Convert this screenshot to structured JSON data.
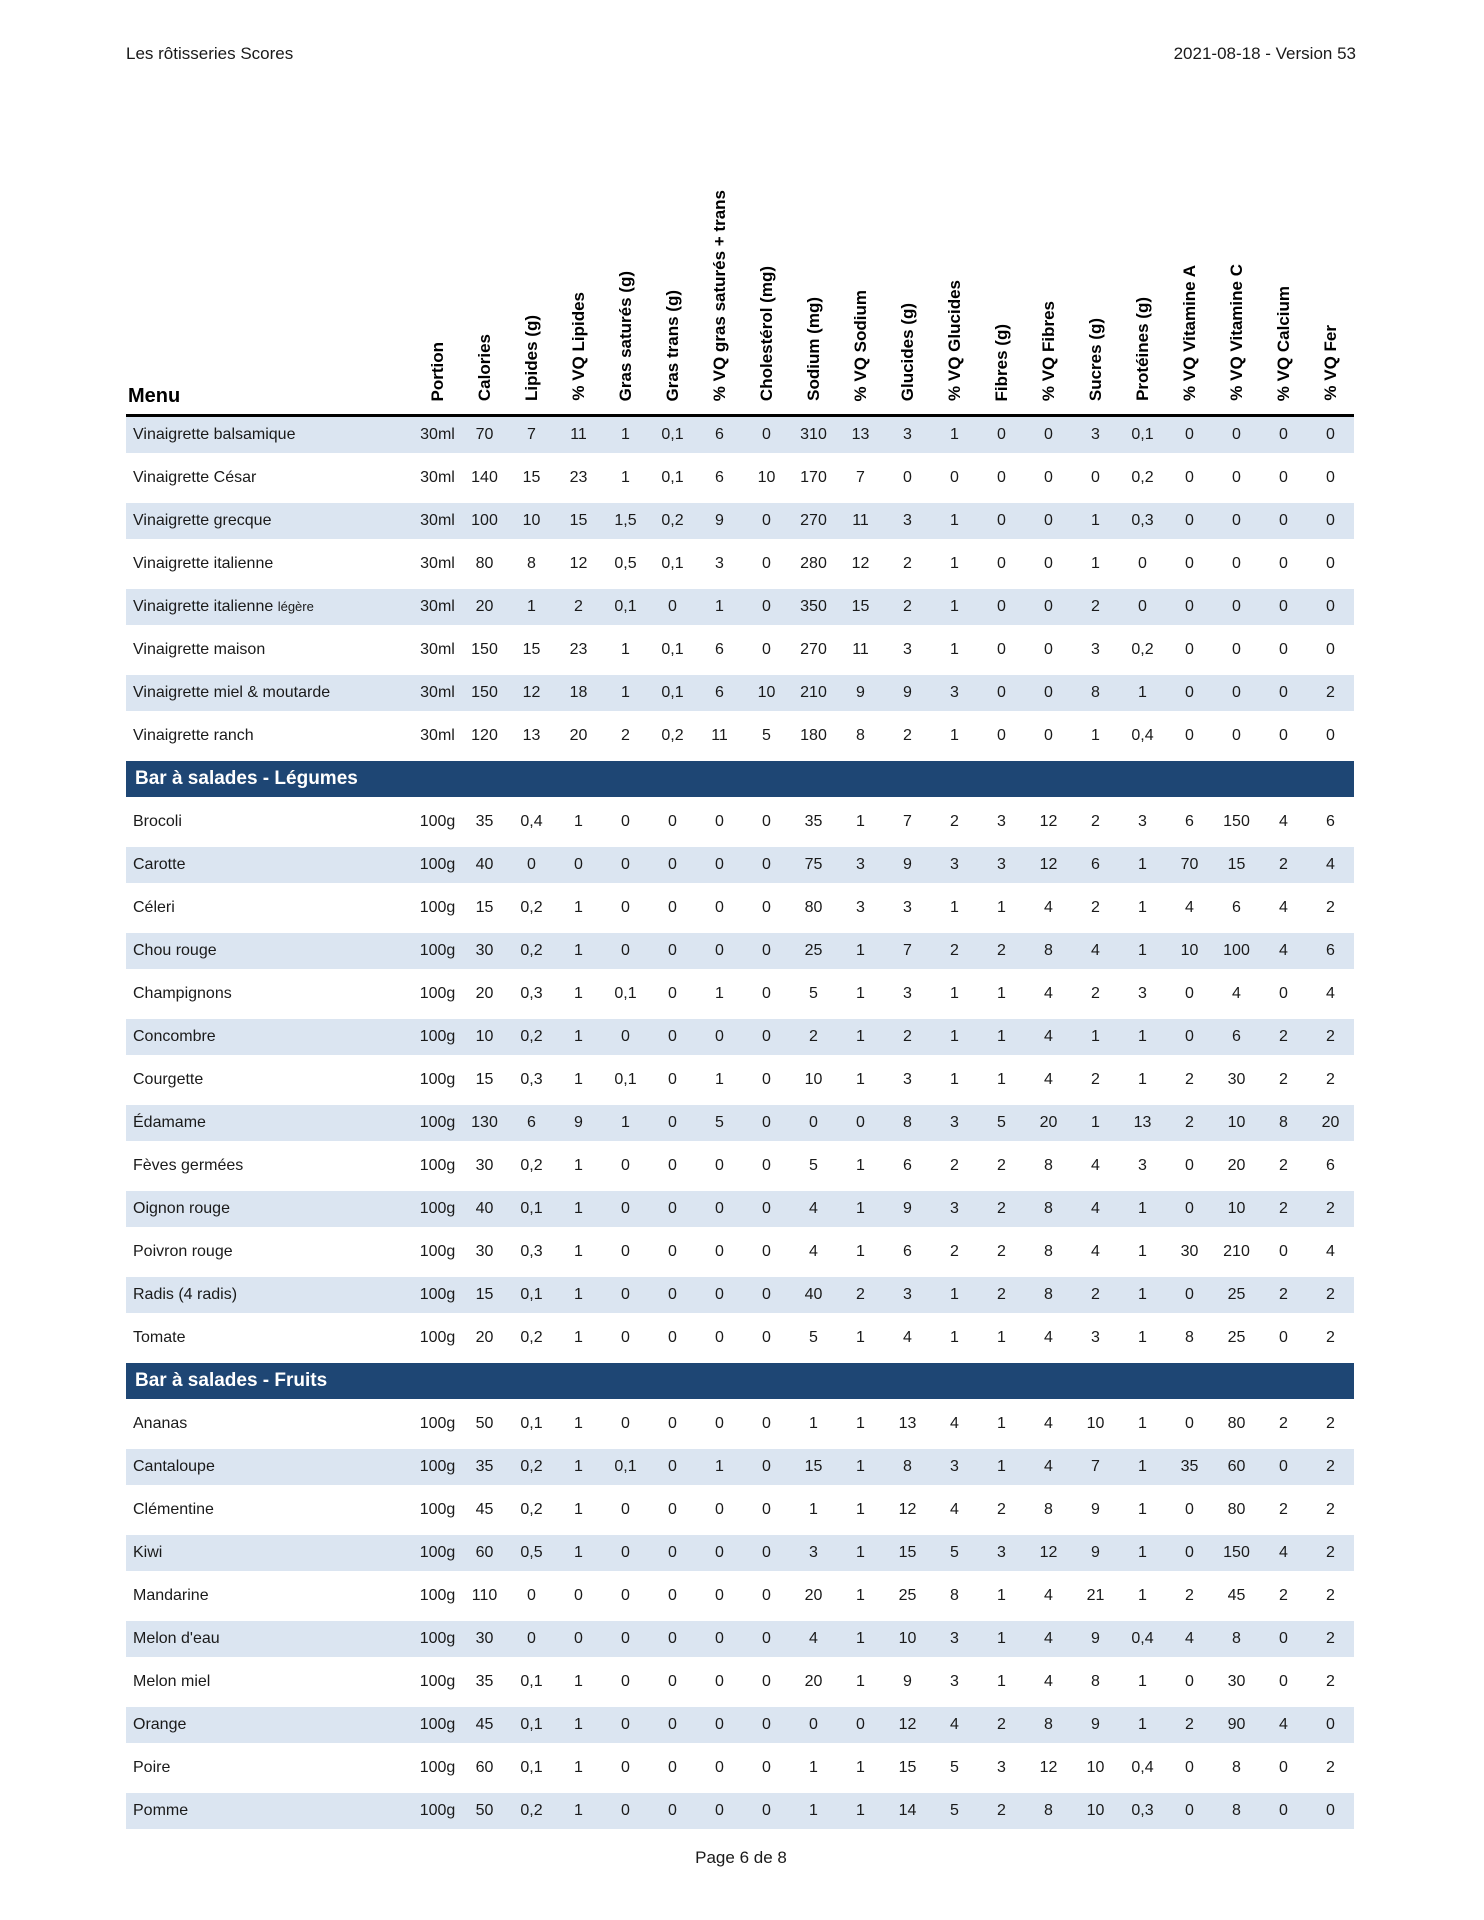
{
  "page_header": {
    "title": "Les rôtisseries Scores",
    "version": "2021-08-18 - Version 53"
  },
  "page_footer": {
    "text": "Page 6 de 8"
  },
  "table": {
    "menu_header": "Menu",
    "colors": {
      "shaded_row": "#dbe5f1",
      "section_bar": "#1e4674",
      "header_rule": "#000000"
    },
    "columns": [
      "Portion",
      "Calories",
      "Lipides (g)",
      "% VQ Lipides",
      "Gras saturés (g)",
      "Gras trans (g)",
      "% VQ gras saturés + trans",
      "Cholestérol (mg)",
      "Sodium (mg)",
      "% VQ Sodium",
      "Glucides (g)",
      "% VQ Glucides",
      "Fibres (g)",
      "% VQ Fibres",
      "Sucres (g)",
      "Protéines (g)",
      "% VQ Vitamine A",
      "% VQ Vitamine C",
      "% VQ Calcium",
      "% VQ Fer"
    ],
    "sections": [
      {
        "title": "",
        "rows": [
          {
            "name": "Vinaigrette balsamique",
            "suffix": "",
            "values": [
              "30ml",
              "70",
              "7",
              "11",
              "1",
              "0,1",
              "6",
              "0",
              "310",
              "13",
              "3",
              "1",
              "0",
              "0",
              "3",
              "0,1",
              "0",
              "0",
              "0",
              "0"
            ]
          },
          {
            "name": "Vinaigrette César",
            "suffix": "",
            "values": [
              "30ml",
              "140",
              "15",
              "23",
              "1",
              "0,1",
              "6",
              "10",
              "170",
              "7",
              "0",
              "0",
              "0",
              "0",
              "0",
              "0,2",
              "0",
              "0",
              "0",
              "0"
            ]
          },
          {
            "name": "Vinaigrette grecque",
            "suffix": "",
            "values": [
              "30ml",
              "100",
              "10",
              "15",
              "1,5",
              "0,2",
              "9",
              "0",
              "270",
              "11",
              "3",
              "1",
              "0",
              "0",
              "1",
              "0,3",
              "0",
              "0",
              "0",
              "0"
            ]
          },
          {
            "name": "Vinaigrette italienne",
            "suffix": "",
            "values": [
              "30ml",
              "80",
              "8",
              "12",
              "0,5",
              "0,1",
              "3",
              "0",
              "280",
              "12",
              "2",
              "1",
              "0",
              "0",
              "1",
              "0",
              "0",
              "0",
              "0",
              "0"
            ]
          },
          {
            "name": "Vinaigrette italienne",
            "suffix": "légère",
            "values": [
              "30ml",
              "20",
              "1",
              "2",
              "0,1",
              "0",
              "1",
              "0",
              "350",
              "15",
              "2",
              "1",
              "0",
              "0",
              "2",
              "0",
              "0",
              "0",
              "0",
              "0"
            ]
          },
          {
            "name": "Vinaigrette maison",
            "suffix": "",
            "values": [
              "30ml",
              "150",
              "15",
              "23",
              "1",
              "0,1",
              "6",
              "0",
              "270",
              "11",
              "3",
              "1",
              "0",
              "0",
              "3",
              "0,2",
              "0",
              "0",
              "0",
              "0"
            ]
          },
          {
            "name": "Vinaigrette miel & moutarde",
            "suffix": "",
            "values": [
              "30ml",
              "150",
              "12",
              "18",
              "1",
              "0,1",
              "6",
              "10",
              "210",
              "9",
              "9",
              "3",
              "0",
              "0",
              "8",
              "1",
              "0",
              "0",
              "0",
              "2"
            ]
          },
          {
            "name": "Vinaigrette ranch",
            "suffix": "",
            "values": [
              "30ml",
              "120",
              "13",
              "20",
              "2",
              "0,2",
              "11",
              "5",
              "180",
              "8",
              "2",
              "1",
              "0",
              "0",
              "1",
              "0,4",
              "0",
              "0",
              "0",
              "0"
            ]
          }
        ]
      },
      {
        "title": "Bar à salades - Légumes",
        "rows": [
          {
            "name": "Brocoli",
            "suffix": "",
            "values": [
              "100g",
              "35",
              "0,4",
              "1",
              "0",
              "0",
              "0",
              "0",
              "35",
              "1",
              "7",
              "2",
              "3",
              "12",
              "2",
              "3",
              "6",
              "150",
              "4",
              "6"
            ]
          },
          {
            "name": "Carotte",
            "suffix": "",
            "values": [
              "100g",
              "40",
              "0",
              "0",
              "0",
              "0",
              "0",
              "0",
              "75",
              "3",
              "9",
              "3",
              "3",
              "12",
              "6",
              "1",
              "70",
              "15",
              "2",
              "4"
            ]
          },
          {
            "name": "Céleri",
            "suffix": "",
            "values": [
              "100g",
              "15",
              "0,2",
              "1",
              "0",
              "0",
              "0",
              "0",
              "80",
              "3",
              "3",
              "1",
              "1",
              "4",
              "2",
              "1",
              "4",
              "6",
              "4",
              "2"
            ]
          },
          {
            "name": "Chou rouge",
            "suffix": "",
            "values": [
              "100g",
              "30",
              "0,2",
              "1",
              "0",
              "0",
              "0",
              "0",
              "25",
              "1",
              "7",
              "2",
              "2",
              "8",
              "4",
              "1",
              "10",
              "100",
              "4",
              "6"
            ]
          },
          {
            "name": "Champignons",
            "suffix": "",
            "values": [
              "100g",
              "20",
              "0,3",
              "1",
              "0,1",
              "0",
              "1",
              "0",
              "5",
              "1",
              "3",
              "1",
              "1",
              "4",
              "2",
              "3",
              "0",
              "4",
              "0",
              "4"
            ]
          },
          {
            "name": "Concombre",
            "suffix": "",
            "values": [
              "100g",
              "10",
              "0,2",
              "1",
              "0",
              "0",
              "0",
              "0",
              "2",
              "1",
              "2",
              "1",
              "1",
              "4",
              "1",
              "1",
              "0",
              "6",
              "2",
              "2"
            ]
          },
          {
            "name": "Courgette",
            "suffix": "",
            "values": [
              "100g",
              "15",
              "0,3",
              "1",
              "0,1",
              "0",
              "1",
              "0",
              "10",
              "1",
              "3",
              "1",
              "1",
              "4",
              "2",
              "1",
              "2",
              "30",
              "2",
              "2"
            ]
          },
          {
            "name": "Édamame",
            "suffix": "",
            "values": [
              "100g",
              "130",
              "6",
              "9",
              "1",
              "0",
              "5",
              "0",
              "0",
              "0",
              "8",
              "3",
              "5",
              "20",
              "1",
              "13",
              "2",
              "10",
              "8",
              "20"
            ]
          },
          {
            "name": "Fèves germées",
            "suffix": "",
            "values": [
              "100g",
              "30",
              "0,2",
              "1",
              "0",
              "0",
              "0",
              "0",
              "5",
              "1",
              "6",
              "2",
              "2",
              "8",
              "4",
              "3",
              "0",
              "20",
              "2",
              "6"
            ]
          },
          {
            "name": "Oignon rouge",
            "suffix": "",
            "values": [
              "100g",
              "40",
              "0,1",
              "1",
              "0",
              "0",
              "0",
              "0",
              "4",
              "1",
              "9",
              "3",
              "2",
              "8",
              "4",
              "1",
              "0",
              "10",
              "2",
              "2"
            ]
          },
          {
            "name": "Poivron rouge",
            "suffix": "",
            "values": [
              "100g",
              "30",
              "0,3",
              "1",
              "0",
              "0",
              "0",
              "0",
              "4",
              "1",
              "6",
              "2",
              "2",
              "8",
              "4",
              "1",
              "30",
              "210",
              "0",
              "4"
            ]
          },
          {
            "name": "Radis (4 radis)",
            "suffix": "",
            "values": [
              "100g",
              "15",
              "0,1",
              "1",
              "0",
              "0",
              "0",
              "0",
              "40",
              "2",
              "3",
              "1",
              "2",
              "8",
              "2",
              "1",
              "0",
              "25",
              "2",
              "2"
            ]
          },
          {
            "name": "Tomate",
            "suffix": "",
            "values": [
              "100g",
              "20",
              "0,2",
              "1",
              "0",
              "0",
              "0",
              "0",
              "5",
              "1",
              "4",
              "1",
              "1",
              "4",
              "3",
              "1",
              "8",
              "25",
              "0",
              "2"
            ]
          }
        ]
      },
      {
        "title": "Bar à salades - Fruits",
        "rows": [
          {
            "name": "Ananas",
            "suffix": "",
            "values": [
              "100g",
              "50",
              "0,1",
              "1",
              "0",
              "0",
              "0",
              "0",
              "1",
              "1",
              "13",
              "4",
              "1",
              "4",
              "10",
              "1",
              "0",
              "80",
              "2",
              "2"
            ]
          },
          {
            "name": "Cantaloupe",
            "suffix": "",
            "values": [
              "100g",
              "35",
              "0,2",
              "1",
              "0,1",
              "0",
              "1",
              "0",
              "15",
              "1",
              "8",
              "3",
              "1",
              "4",
              "7",
              "1",
              "35",
              "60",
              "0",
              "2"
            ]
          },
          {
            "name": "Clémentine",
            "suffix": "",
            "values": [
              "100g",
              "45",
              "0,2",
              "1",
              "0",
              "0",
              "0",
              "0",
              "1",
              "1",
              "12",
              "4",
              "2",
              "8",
              "9",
              "1",
              "0",
              "80",
              "2",
              "2"
            ]
          },
          {
            "name": "Kiwi",
            "suffix": "",
            "values": [
              "100g",
              "60",
              "0,5",
              "1",
              "0",
              "0",
              "0",
              "0",
              "3",
              "1",
              "15",
              "5",
              "3",
              "12",
              "9",
              "1",
              "0",
              "150",
              "4",
              "2"
            ]
          },
          {
            "name": "Mandarine",
            "suffix": "",
            "values": [
              "100g",
              "110",
              "0",
              "0",
              "0",
              "0",
              "0",
              "0",
              "20",
              "1",
              "25",
              "8",
              "1",
              "4",
              "21",
              "1",
              "2",
              "45",
              "2",
              "2"
            ]
          },
          {
            "name": "Melon d'eau",
            "suffix": "",
            "values": [
              "100g",
              "30",
              "0",
              "0",
              "0",
              "0",
              "0",
              "0",
              "4",
              "1",
              "10",
              "3",
              "1",
              "4",
              "9",
              "0,4",
              "4",
              "8",
              "0",
              "2"
            ]
          },
          {
            "name": "Melon miel",
            "suffix": "",
            "values": [
              "100g",
              "35",
              "0,1",
              "1",
              "0",
              "0",
              "0",
              "0",
              "20",
              "1",
              "9",
              "3",
              "1",
              "4",
              "8",
              "1",
              "0",
              "30",
              "0",
              "2"
            ]
          },
          {
            "name": "Orange",
            "suffix": "",
            "values": [
              "100g",
              "45",
              "0,1",
              "1",
              "0",
              "0",
              "0",
              "0",
              "0",
              "0",
              "12",
              "4",
              "2",
              "8",
              "9",
              "1",
              "2",
              "90",
              "4",
              "0"
            ]
          },
          {
            "name": "Poire",
            "suffix": "",
            "values": [
              "100g",
              "60",
              "0,1",
              "1",
              "0",
              "0",
              "0",
              "0",
              "1",
              "1",
              "15",
              "5",
              "3",
              "12",
              "10",
              "0,4",
              "0",
              "8",
              "0",
              "2"
            ]
          },
          {
            "name": "Pomme",
            "suffix": "",
            "values": [
              "100g",
              "50",
              "0,2",
              "1",
              "0",
              "0",
              "0",
              "0",
              "1",
              "1",
              "14",
              "5",
              "2",
              "8",
              "10",
              "0,3",
              "0",
              "8",
              "0",
              "0"
            ]
          }
        ]
      }
    ]
  }
}
